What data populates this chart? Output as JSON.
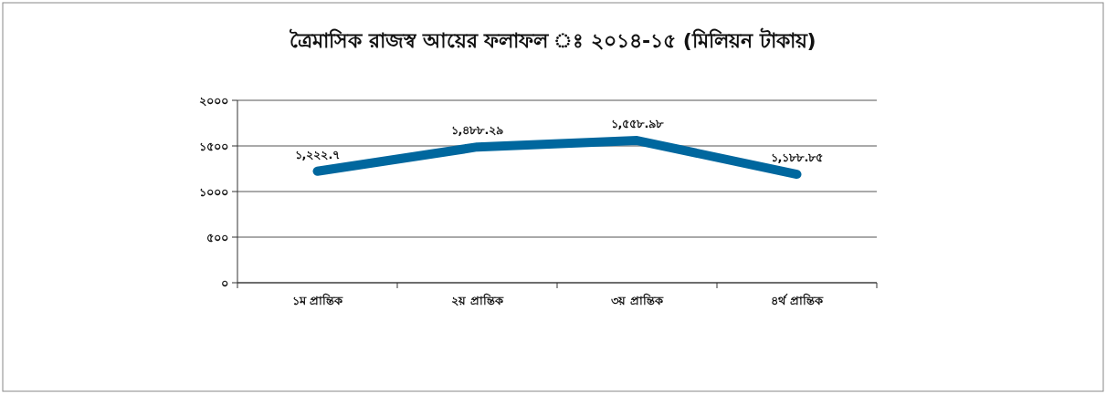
{
  "chart_data": {
    "type": "line",
    "title": "ত্রৈমাসিক রাজস্ব আয়ের ফলাফল ঃ ২০১৪-১৫ (মিলিয়ন টাকায়)",
    "categories": [
      "১ম প্রান্তিক",
      "২য় প্রান্তিক",
      "৩য় প্রান্তিক",
      "৪র্থ প্রান্তিক"
    ],
    "series": [
      {
        "color": "#00679e",
        "values": [
          1222.7,
          1488.29,
          1558.98,
          1188.85
        ],
        "value_labels": [
          "১,২২২.৭",
          "১,৪৮৮.২৯",
          "১,৫৫৮.৯৮",
          "১,১৮৮.৮৫"
        ]
      }
    ],
    "ylim": [
      0,
      2000
    ],
    "yticks": [
      {
        "value": 0,
        "label": "০"
      },
      {
        "value": 500,
        "label": "৫০০"
      },
      {
        "value": 1000,
        "label": "১০০০"
      },
      {
        "value": 1500,
        "label": "১৫০০"
      },
      {
        "value": 2000,
        "label": "২০০০"
      }
    ],
    "grid": "y",
    "marker": "none",
    "line_style": "solid"
  }
}
